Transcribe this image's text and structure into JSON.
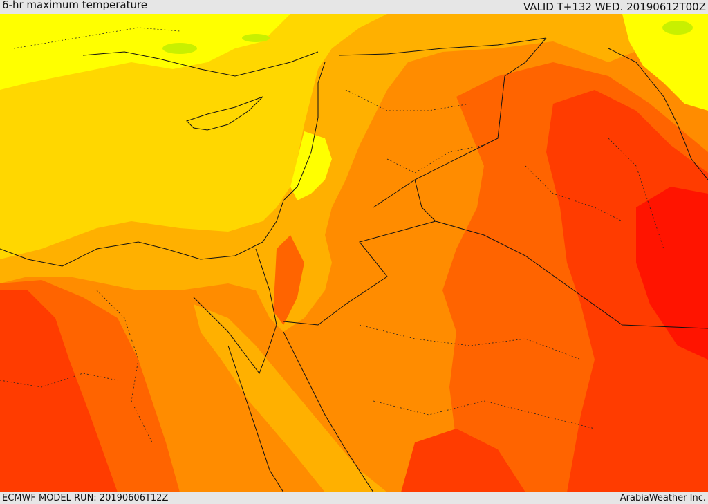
{
  "header": {
    "title": "6-hr maximum temperature",
    "valid": "VALID T+132 WED. 20190612T00Z"
  },
  "footer": {
    "model_run": "ECMWF MODEL RUN: 20190606T12Z",
    "credit": "ArabiaWeather Inc."
  },
  "palette": {
    "band_light_green": "#c8f000",
    "band_yellow": "#ffff00",
    "band_gold": "#ffd700",
    "band_amber": "#ffb000",
    "band_orange": "#ff8c00",
    "band_dark_orange": "#ff6400",
    "band_red_orange": "#ff3c00",
    "band_red": "#ff1400",
    "border_color": "#111111"
  }
}
